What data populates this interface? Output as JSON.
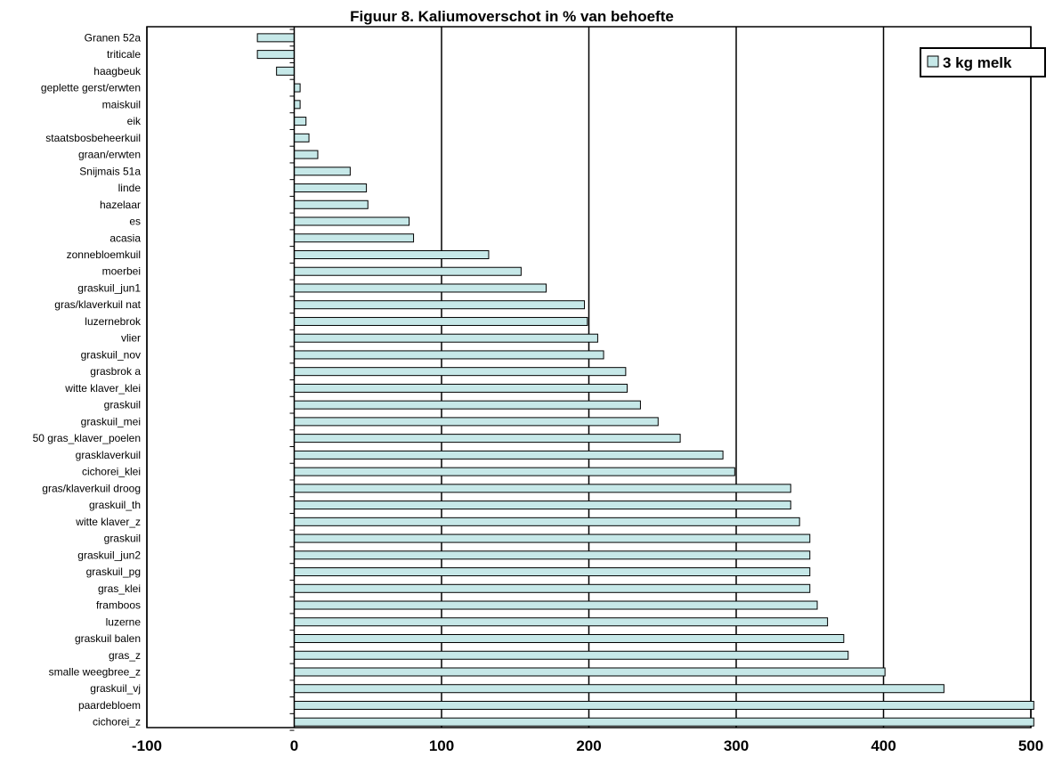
{
  "chart_data": {
    "type": "bar",
    "orientation": "horizontal",
    "title": "Figuur 8. Kaliumoverschot in % van behoefte",
    "xlabel": "",
    "ylabel": "",
    "xlim": [
      -100,
      500
    ],
    "x_ticks": [
      "-100",
      "0",
      "100",
      "200",
      "300",
      "400",
      "500"
    ],
    "grid": "vertical major gridlines",
    "legend_position": "top-right",
    "bar_color": "#c6e8e8",
    "categories": [
      "Granen 52a",
      "triticale",
      "haagbeuk",
      "geplette gerst/erwten",
      "maiskuil",
      "eik",
      "staatsbosbeheerkuil",
      "graan/erwten",
      "Snijmais 51a",
      "linde",
      "hazelaar",
      "es",
      "acasia",
      "zonnebloemkuil",
      "moerbei",
      "graskuil_jun1",
      "gras/klaverkuil nat",
      "luzernebrok",
      "vlier",
      "graskuil_nov",
      "grasbrok a",
      "witte klaver_klei",
      "graskuil",
      "graskuil_mei",
      "50 gras_klaver_poelen",
      "grasklaverkuil",
      "cichorei_klei",
      "gras/klaverkuil droog",
      "graskuil_th",
      "witte klaver_z",
      "graskuil",
      "graskuil_jun2",
      "graskuil_pg",
      "gras_klei",
      "framboos",
      "luzerne",
      "graskuil balen",
      "gras_z",
      "smalle weegbree_z",
      "graskuil_vj",
      "paardebloem",
      "cichorei_z"
    ],
    "series": [
      {
        "name": "3 kg melk",
        "values": [
          -25,
          -25,
          -12,
          4,
          4,
          8,
          10,
          16,
          38,
          49,
          50,
          78,
          81,
          132,
          154,
          171,
          197,
          199,
          206,
          210,
          225,
          226,
          235,
          247,
          262,
          291,
          299,
          337,
          337,
          343,
          350,
          350,
          350,
          350,
          355,
          362,
          373,
          376,
          401,
          441,
          502,
          502
        ]
      }
    ]
  }
}
